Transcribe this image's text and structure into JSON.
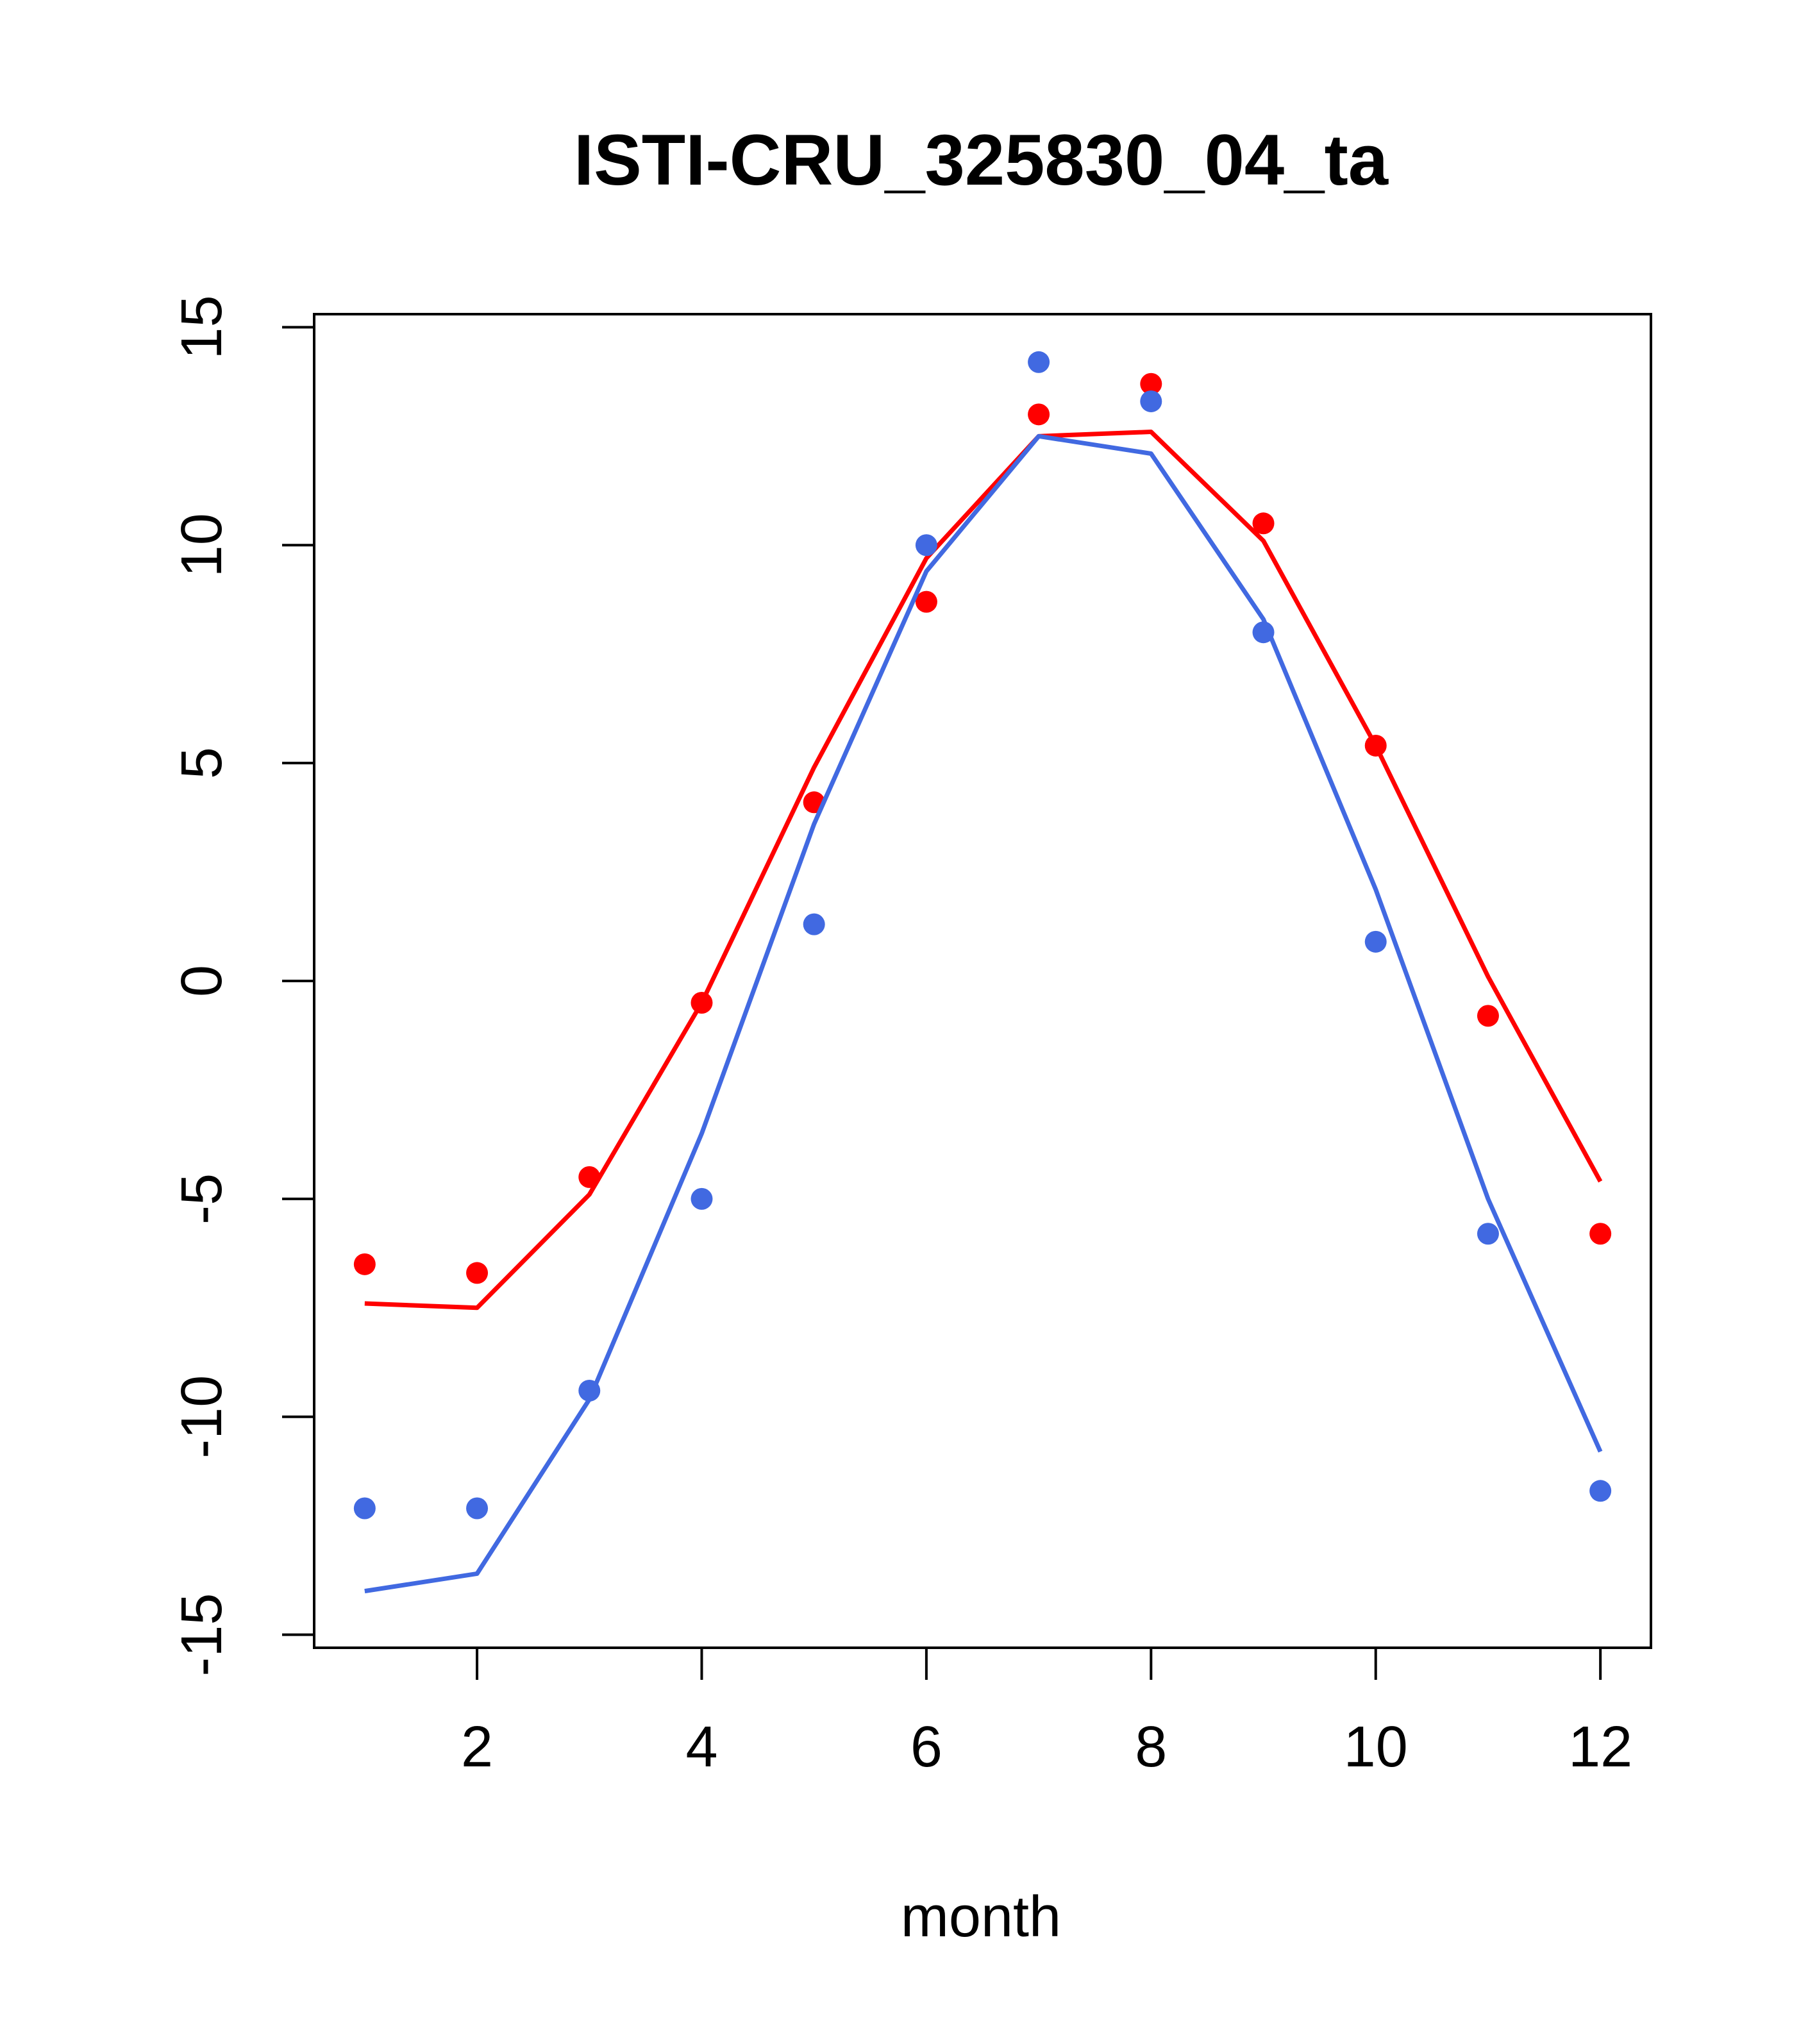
{
  "chart_data": {
    "type": "line",
    "title": "ISTI-CRU_325830_04_ta",
    "xlabel": "month",
    "ylabel": "",
    "xlim": [
      0.55,
      12.45
    ],
    "ylim": [
      -15.3,
      15.3
    ],
    "x_ticks": [
      2,
      4,
      6,
      8,
      10,
      12
    ],
    "x_tick_labels": [
      "2",
      "4",
      "6",
      "8",
      "10",
      "12"
    ],
    "y_ticks": [
      -15,
      -10,
      -5,
      0,
      5,
      10,
      15
    ],
    "y_tick_labels": [
      "-15",
      "-10",
      "-5",
      "0",
      "5",
      "10",
      "15"
    ],
    "grid": false,
    "legend": "none",
    "x": [
      1,
      2,
      3,
      4,
      5,
      6,
      7,
      8,
      9,
      10,
      11,
      12
    ],
    "series": [
      {
        "color": "#FF0000",
        "line": [
          -7.4,
          -7.5,
          -4.9,
          -0.5,
          4.9,
          9.7,
          12.5,
          12.6,
          10.1,
          5.4,
          0.1,
          -4.6
        ],
        "points": [
          -6.5,
          -6.7,
          -4.5,
          -0.5,
          4.1,
          8.7,
          13.0,
          13.7,
          10.5,
          5.4,
          -0.8,
          -5.8
        ]
      },
      {
        "color": "#4169E1",
        "line": [
          -14.0,
          -13.6,
          -9.6,
          -3.5,
          3.6,
          9.4,
          12.5,
          12.1,
          8.3,
          2.1,
          -5.0,
          -10.8
        ],
        "points": [
          -12.1,
          -12.1,
          -9.4,
          -5.0,
          1.3,
          10.0,
          14.2,
          13.3,
          8.0,
          0.9,
          -5.8,
          -11.7
        ]
      }
    ]
  }
}
